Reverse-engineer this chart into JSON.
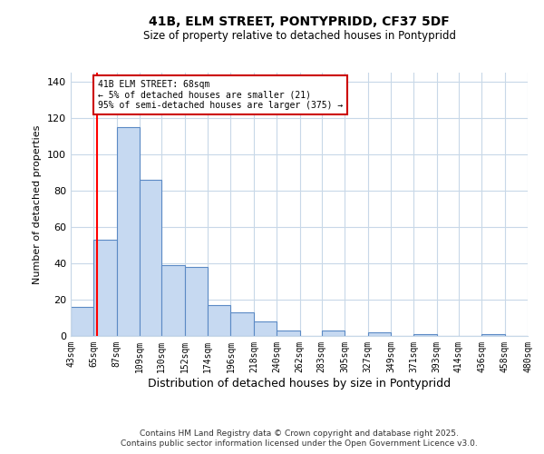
{
  "title": "41B, ELM STREET, PONTYPRIDD, CF37 5DF",
  "subtitle": "Size of property relative to detached houses in Pontypridd",
  "xlabel": "Distribution of detached houses by size in Pontypridd",
  "ylabel": "Number of detached properties",
  "bar_edges": [
    43,
    65,
    87,
    109,
    130,
    152,
    174,
    196,
    218,
    240,
    262,
    283,
    305,
    327,
    349,
    371,
    393,
    414,
    436,
    458,
    480
  ],
  "bar_heights": [
    16,
    53,
    115,
    86,
    39,
    38,
    17,
    13,
    8,
    3,
    0,
    3,
    0,
    2,
    0,
    1,
    0,
    0,
    1,
    0
  ],
  "bar_color": "#c6d9f1",
  "bar_edge_color": "#5b8ac5",
  "ylim": [
    0,
    145
  ],
  "yticks": [
    0,
    20,
    40,
    60,
    80,
    100,
    120,
    140
  ],
  "vline_x": 68,
  "vline_color": "#ff0000",
  "annotation_title": "41B ELM STREET: 68sqm",
  "annotation_line1": "← 5% of detached houses are smaller (21)",
  "annotation_line2": "95% of semi-detached houses are larger (375) →",
  "annotation_box_color": "#ffffff",
  "annotation_box_edge_color": "#cc0000",
  "footer1": "Contains HM Land Registry data © Crown copyright and database right 2025.",
  "footer2": "Contains public sector information licensed under the Open Government Licence v3.0.",
  "tick_labels": [
    "43sqm",
    "65sqm",
    "87sqm",
    "109sqm",
    "130sqm",
    "152sqm",
    "174sqm",
    "196sqm",
    "218sqm",
    "240sqm",
    "262sqm",
    "283sqm",
    "305sqm",
    "327sqm",
    "349sqm",
    "371sqm",
    "393sqm",
    "414sqm",
    "436sqm",
    "458sqm",
    "480sqm"
  ],
  "background_color": "#ffffff",
  "grid_color": "#c8d8e8"
}
